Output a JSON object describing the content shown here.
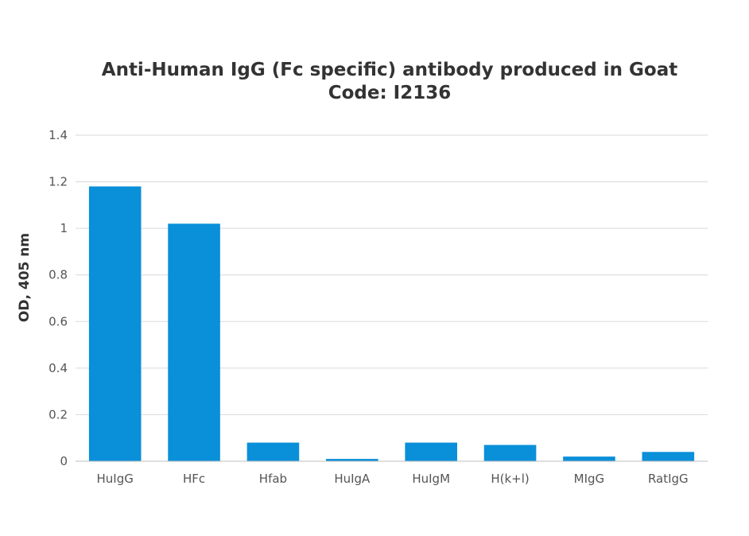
{
  "chart_data": {
    "type": "bar",
    "title": "Anti-Human IgG (Fc specific) antibody produced in Goat",
    "subtitle": "Code: I2136",
    "xlabel": "",
    "ylabel": "OD, 405 nm",
    "categories": [
      "HuIgG",
      "HFc",
      "Hfab",
      "HuIgA",
      "HuIgM",
      "H(k+l)",
      "MIgG",
      "RatIgG"
    ],
    "values": [
      1.18,
      1.02,
      0.08,
      0.01,
      0.08,
      0.07,
      0.02,
      0.04
    ],
    "ylim": [
      0,
      1.4
    ],
    "yticks": [
      "0",
      "0.2",
      "0.4",
      "0.6",
      "0.8",
      "1",
      "1.2",
      "1.4"
    ],
    "ytick_values": [
      0,
      0.2,
      0.4,
      0.6,
      0.8,
      1,
      1.2,
      1.4
    ],
    "grid": true,
    "legend": "none",
    "bar_color": "#0a8fd9"
  }
}
